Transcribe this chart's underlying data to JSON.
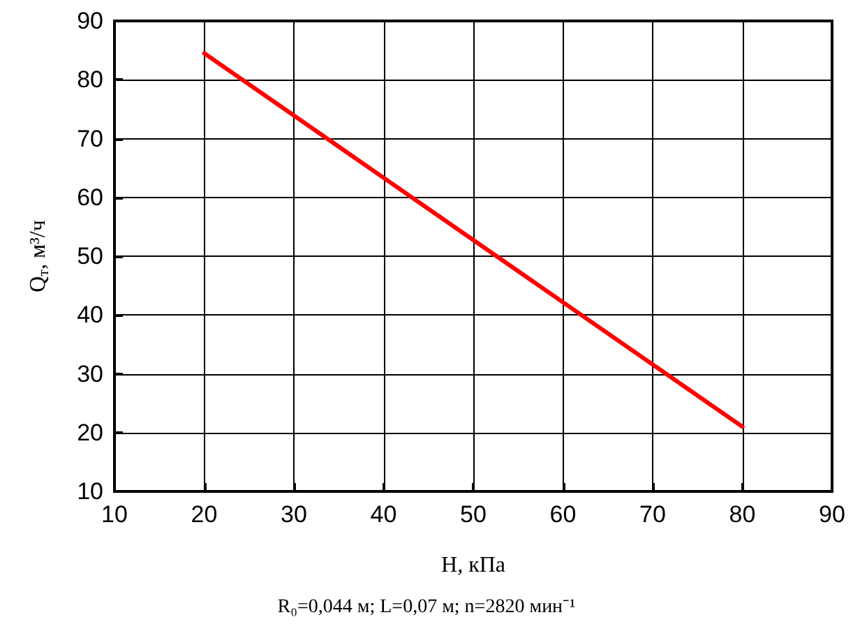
{
  "chart_data": {
    "type": "line",
    "xlabel": "H, кПа",
    "ylabel": "Q$_{т}$, м³/ч",
    "annotations": [
      "R₀=0,044 м; L=0,07 м; n=2820 мин⁻¹"
    ],
    "x": [
      20,
      80
    ],
    "series": [
      {
        "color": "#ff0000",
        "values": [
          84.5,
          21
        ]
      }
    ],
    "xlim": [
      10,
      90
    ],
    "xticks": [
      10,
      20,
      30,
      40,
      50,
      60,
      70,
      80,
      90
    ],
    "ylim": [
      10,
      90
    ],
    "yticks": [
      10,
      20,
      30,
      40,
      50,
      60,
      70,
      80,
      90
    ],
    "grid": true,
    "marker": "none",
    "line_style": "solid"
  }
}
